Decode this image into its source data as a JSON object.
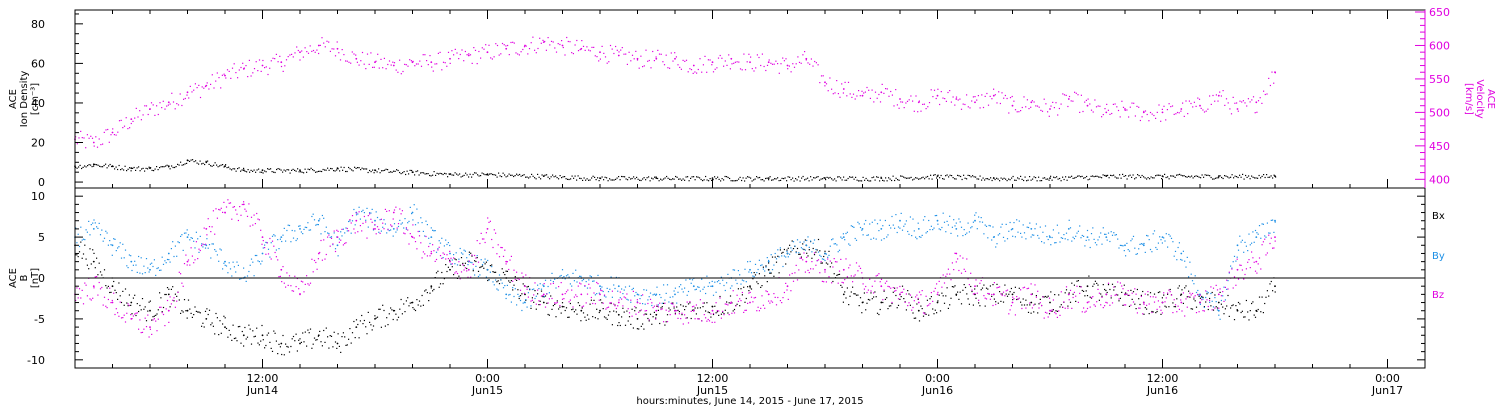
{
  "chart_data": [
    {
      "type": "scatter",
      "title": "",
      "xlabel": "hours:minutes, June 14, 2015 - June 17, 2015",
      "ylabel": "ACE\nIon Density\n[cm⁻³]",
      "y2label": "ACE\nVelocity\n[km/s]",
      "xlim": [
        2.0,
        74.0
      ],
      "ylim": [
        -3,
        87
      ],
      "y2lim": [
        387,
        653
      ],
      "x_ticks": [
        {
          "x": 12,
          "label": "12:00",
          "sub": "Jun14"
        },
        {
          "x": 24,
          "label": "0:00",
          "sub": "Jun15"
        },
        {
          "x": 36,
          "label": "12:00",
          "sub": "Jun15"
        },
        {
          "x": 48,
          "label": "0:00",
          "sub": "Jun16"
        },
        {
          "x": 60,
          "label": "12:00",
          "sub": "Jun16"
        },
        {
          "x": 72,
          "label": "0:00",
          "sub": "Jun17"
        }
      ],
      "y_ticks": [
        0,
        20,
        40,
        60,
        80
      ],
      "y2_ticks": [
        400,
        450,
        500,
        550,
        600,
        650
      ],
      "series": [
        {
          "axis": "left",
          "color": "#000000",
          "x": [
            2,
            3,
            4,
            5,
            6,
            7,
            8,
            9,
            10,
            11,
            12,
            14,
            16,
            18,
            20,
            22,
            24,
            27,
            30,
            33,
            36,
            39,
            42,
            45,
            48,
            51,
            54,
            57,
            60,
            63,
            66
          ],
          "values": [
            8,
            9,
            8,
            7,
            7,
            8,
            11,
            10,
            8,
            6,
            6,
            6,
            7,
            6,
            5,
            4,
            4,
            3,
            2,
            2,
            2,
            2,
            2,
            2,
            3,
            2,
            2,
            3,
            3,
            3,
            3
          ]
        },
        {
          "axis": "right",
          "color": "#e000e0",
          "x": [
            2,
            3,
            4,
            5,
            6,
            7,
            8,
            9,
            10,
            11,
            12,
            13,
            14,
            15,
            16,
            17,
            18,
            19,
            20,
            21,
            22,
            23,
            24,
            25,
            26,
            27,
            28,
            29,
            30,
            31,
            32,
            33,
            34,
            35,
            36,
            37,
            38,
            39,
            40,
            41,
            42,
            43,
            44,
            45,
            46,
            47,
            48,
            49,
            50,
            51,
            52,
            53,
            54,
            55,
            56,
            57,
            58,
            59,
            60,
            61,
            62,
            63,
            64,
            65,
            66
          ],
          "values": [
            460,
            455,
            470,
            490,
            505,
            515,
            530,
            540,
            555,
            565,
            570,
            575,
            590,
            600,
            595,
            580,
            575,
            570,
            575,
            575,
            580,
            585,
            590,
            595,
            600,
            605,
            600,
            595,
            590,
            585,
            580,
            580,
            580,
            570,
            575,
            580,
            575,
            575,
            570,
            580,
            545,
            535,
            525,
            530,
            520,
            515,
            525,
            520,
            515,
            525,
            510,
            515,
            505,
            520,
            510,
            500,
            505,
            500,
            500,
            505,
            510,
            525,
            505,
            515,
            560
          ]
        }
      ]
    },
    {
      "type": "scatter",
      "title": "",
      "xlabel": "hours:minutes, June 14, 2015 - June 17, 2015",
      "ylabel": "ACE\nB\n[nT]",
      "xlim": [
        2.0,
        74.0
      ],
      "ylim": [
        -11,
        11
      ],
      "y_ticks": [
        -10,
        -5,
        0,
        5,
        10
      ],
      "legend": "right",
      "series": [
        {
          "name": "Bx",
          "color": "#000000",
          "x": [
            2,
            3,
            4,
            5,
            6,
            7,
            8,
            9,
            10,
            11,
            12,
            13,
            14,
            15,
            16,
            17,
            18,
            19,
            20,
            21,
            22,
            23,
            24,
            25,
            26,
            27,
            28,
            29,
            30,
            31,
            32,
            33,
            34,
            35,
            36,
            37,
            38,
            39,
            40,
            41,
            42,
            43,
            44,
            45,
            46,
            47,
            48,
            49,
            50,
            51,
            52,
            53,
            54,
            55,
            56,
            57,
            58,
            59,
            60,
            61,
            62,
            63,
            64,
            65,
            66
          ],
          "values": [
            4,
            2,
            -1,
            -3,
            -4,
            -2,
            -4,
            -5,
            -6,
            -7,
            -7,
            -8,
            -8,
            -7,
            -8,
            -6,
            -5,
            -4,
            -3,
            -1,
            1,
            2,
            1,
            0,
            -2,
            -3,
            -3.5,
            -4,
            -4,
            -4.5,
            -5,
            -4.5,
            -4,
            -4,
            -3.5,
            -3,
            -1,
            1,
            3,
            4,
            3,
            -2,
            -3,
            -3,
            -2,
            -4,
            -3,
            -2,
            -2,
            -2,
            -2,
            -3,
            -3,
            -2,
            -1,
            -2,
            -2,
            -3,
            -3,
            -2,
            -3,
            -3,
            -4,
            -4,
            -1
          ]
        },
        {
          "name": "By",
          "color": "#1e90e6",
          "x": [
            2,
            3,
            4,
            5,
            6,
            7,
            8,
            9,
            10,
            11,
            12,
            13,
            14,
            15,
            16,
            17,
            18,
            19,
            20,
            21,
            22,
            23,
            24,
            25,
            26,
            27,
            28,
            29,
            30,
            31,
            32,
            33,
            34,
            35,
            36,
            37,
            38,
            39,
            40,
            41,
            42,
            43,
            44,
            45,
            46,
            47,
            48,
            49,
            50,
            51,
            52,
            53,
            54,
            55,
            56,
            57,
            58,
            59,
            60,
            61,
            62,
            63,
            64,
            65,
            66
          ],
          "values": [
            5,
            6,
            4,
            2,
            1,
            3,
            5,
            4,
            2,
            0,
            3,
            5,
            6,
            7,
            4,
            8,
            7,
            6,
            8,
            5,
            3,
            2,
            1,
            -2,
            -3,
            -1,
            0,
            0,
            -1,
            -1,
            -2,
            -2,
            -2,
            -1,
            -1,
            0,
            1,
            2,
            3,
            4,
            3,
            5,
            6,
            6,
            7,
            6,
            7,
            6,
            7,
            5,
            6,
            6,
            5,
            6,
            5,
            5,
            4,
            4,
            5,
            3,
            -2,
            -4,
            4,
            5,
            7
          ]
        },
        {
          "name": "Bz",
          "color": "#e000e0",
          "x": [
            2,
            3,
            4,
            5,
            6,
            7,
            8,
            9,
            10,
            11,
            12,
            13,
            14,
            15,
            16,
            17,
            18,
            19,
            20,
            21,
            22,
            23,
            24,
            25,
            26,
            27,
            28,
            29,
            30,
            31,
            32,
            33,
            34,
            35,
            36,
            37,
            38,
            39,
            40,
            41,
            42,
            43,
            44,
            45,
            46,
            47,
            48,
            49,
            50,
            51,
            52,
            53,
            54,
            55,
            56,
            57,
            58,
            59,
            60,
            61,
            62,
            63,
            64,
            65,
            66
          ],
          "values": [
            -2,
            -1,
            -3,
            -5,
            -6,
            -4,
            2,
            6,
            8,
            9,
            5,
            1,
            -2,
            3,
            5,
            7,
            6,
            8,
            5,
            3,
            2,
            1,
            6,
            2,
            -1,
            -2,
            -2,
            -2,
            -2,
            -3,
            -3,
            -4,
            -4,
            -4,
            -4,
            -3,
            -3,
            -2,
            -1,
            2,
            1,
            1,
            0,
            -1,
            -2,
            -3,
            -2,
            3,
            -1,
            -2,
            -3,
            -2,
            -4,
            -2,
            -3,
            -2,
            -2,
            -3,
            -3,
            -3,
            -3,
            -2,
            1,
            2,
            5
          ]
        }
      ]
    }
  ]
}
